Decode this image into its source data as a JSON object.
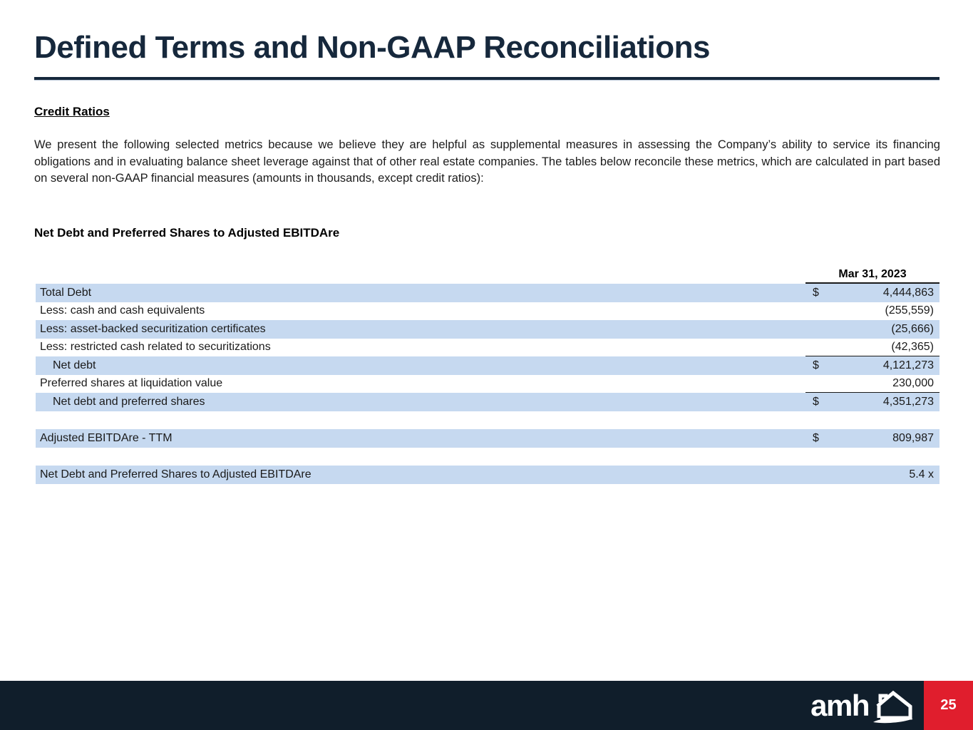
{
  "page": {
    "title": "Defined Terms and Non-GAAP Reconciliations",
    "section_heading": "Credit Ratios",
    "paragraph": "We present the following selected metrics because we believe they are helpful as supplemental measures in assessing the Company’s ability to service its financing obligations and in evaluating balance sheet leverage against that of other real estate companies. The tables below reconcile these metrics, which are calculated in part based on several non-GAAP financial measures (amounts in thousands, except credit ratios):",
    "table_title": "Net Debt and Preferred Shares to Adjusted EBITDAre"
  },
  "table": {
    "column_header": "Mar 31, 2023",
    "rows": [
      {
        "label": "Total Debt",
        "dollar": "$",
        "value": "4,444,863",
        "shaded": true,
        "indent": false,
        "rule_below": false
      },
      {
        "label": "Less: cash and cash equivalents",
        "dollar": "",
        "value": "(255,559)",
        "shaded": false,
        "indent": false,
        "rule_below": false
      },
      {
        "label": "Less: asset-backed securitization certificates",
        "dollar": "",
        "value": "(25,666)",
        "shaded": true,
        "indent": false,
        "rule_below": false
      },
      {
        "label": "Less: restricted cash related to securitizations",
        "dollar": "",
        "value": "(42,365)",
        "shaded": false,
        "indent": false,
        "rule_below": true
      },
      {
        "label": "Net debt",
        "dollar": "$",
        "value": "4,121,273",
        "shaded": true,
        "indent": true,
        "rule_below": false
      },
      {
        "label": "Preferred shares at liquidation value",
        "dollar": "",
        "value": "230,000",
        "shaded": false,
        "indent": false,
        "rule_below": true
      },
      {
        "label": "Net debt and preferred shares",
        "dollar": "$",
        "value": "4,351,273",
        "shaded": true,
        "indent": true,
        "rule_below": false
      },
      {
        "spacer": true
      },
      {
        "label": "Adjusted EBITDAre - TTM",
        "dollar": "$",
        "value": "809,987",
        "shaded": true,
        "indent": false,
        "rule_below": false
      },
      {
        "spacer": true
      },
      {
        "label": "Net Debt and Preferred Shares to Adjusted EBITDAre",
        "dollar": "",
        "value": "5.4 x",
        "shaded": true,
        "indent": false,
        "rule_below": false
      }
    ]
  },
  "footer": {
    "logo_text": "amh",
    "page_number": "25"
  },
  "colors": {
    "title_navy": "#16283C",
    "row_blue": "#C6D9F0",
    "footer_navy": "#101E2B",
    "accent_red": "#E01E2D"
  },
  "icons": {
    "house": "amh-house-icon"
  }
}
